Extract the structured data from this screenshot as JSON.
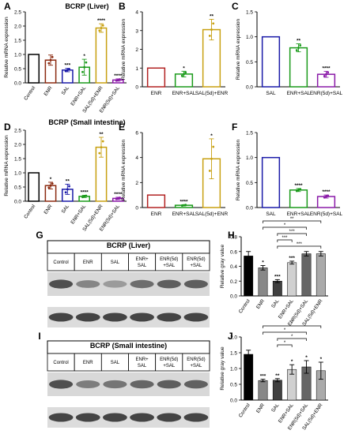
{
  "chart_data": [
    {
      "id": "A",
      "type": "bar",
      "panel_letter": "A",
      "title": "BCRP (Liver)",
      "ylabel": "Relative mRNA expression",
      "xlabel": "",
      "ylim": [
        0,
        2.5
      ],
      "yticks": [
        "0.0",
        "0.5",
        "1.0",
        "1.5",
        "2.0",
        "2.5"
      ],
      "grid": false,
      "legend": "none",
      "categories": [
        "Control",
        "ENR",
        "SAL",
        "ENR+SAL",
        "SAL(5d)+ENR",
        "ENR(5d)+SAL"
      ],
      "values": [
        1.0,
        0.8,
        0.45,
        0.55,
        1.93,
        0.1
      ],
      "errors": [
        0,
        0.18,
        0.06,
        0.28,
        0.15,
        0.04
      ],
      "significance": [
        "",
        "",
        "***",
        "*",
        "****",
        "****"
      ],
      "colors": [
        "#000000",
        "#8b2a10",
        "#1a1aa8",
        "#1a9a1a",
        "#c8a010",
        "#8a1aa8"
      ]
    },
    {
      "id": "B",
      "type": "bar",
      "panel_letter": "B",
      "title": "",
      "ylabel": "Relative mRNA expression",
      "xlabel": "",
      "ylim": [
        0,
        4
      ],
      "yticks": [
        "0",
        "1",
        "2",
        "3",
        "4"
      ],
      "grid": false,
      "legend": "none",
      "categories": [
        "ENR",
        "ENR+SAL",
        "SAL(5d)+ENR"
      ],
      "values": [
        1.0,
        0.68,
        3.05
      ],
      "errors": [
        0,
        0.15,
        0.55
      ],
      "significance": [
        "",
        "*",
        "**"
      ],
      "colors": [
        "#b22222",
        "#1a9a1a",
        "#c8a010"
      ]
    },
    {
      "id": "C",
      "type": "bar",
      "panel_letter": "C",
      "title": "",
      "ylabel": "Relative mRNA expression",
      "xlabel": "",
      "ylim": [
        0,
        1.5
      ],
      "yticks": [
        "0.0",
        "0.5",
        "1.0",
        "1.5"
      ],
      "grid": false,
      "legend": "none",
      "categories": [
        "SAL",
        "ENR+SAL",
        "ENR(5d)+SAL"
      ],
      "values": [
        1.0,
        0.78,
        0.25
      ],
      "errors": [
        0,
        0.08,
        0.06
      ],
      "significance": [
        "",
        "**",
        "****"
      ],
      "colors": [
        "#1a1aa8",
        "#1a9a1a",
        "#8a1aa8"
      ]
    },
    {
      "id": "D",
      "type": "bar",
      "panel_letter": "D",
      "title": "BCRP (Small intestine)",
      "ylabel": "Relative mRNA expression",
      "xlabel": "",
      "ylim": [
        0,
        2.5
      ],
      "yticks": [
        "0.0",
        "0.5",
        "1.0",
        "1.5",
        "2.0",
        "2.5"
      ],
      "grid": false,
      "legend": "none",
      "categories": [
        "Control",
        "ENR",
        "SAL",
        "ENR+SAL",
        "SAL(5d)+ENR",
        "ENR(5d)+SAL"
      ],
      "values": [
        1.0,
        0.55,
        0.42,
        0.17,
        1.9,
        0.1
      ],
      "errors": [
        0,
        0.12,
        0.18,
        0.04,
        0.35,
        0.04
      ],
      "significance": [
        "",
        "*",
        "**",
        "****",
        "**",
        "****"
      ],
      "colors": [
        "#000000",
        "#8b2a10",
        "#1a1aa8",
        "#1a9a1a",
        "#c8a010",
        "#8a1aa8"
      ]
    },
    {
      "id": "E",
      "type": "bar",
      "panel_letter": "E",
      "title": "",
      "ylabel": "Relative mRNA expression",
      "xlabel": "",
      "ylim": [
        0,
        6
      ],
      "yticks": [
        "0",
        "2",
        "4",
        "6"
      ],
      "grid": false,
      "legend": "none",
      "categories": [
        "ENR",
        "ENR+SAL",
        "SAL(5d)+ENR"
      ],
      "values": [
        1.0,
        0.18,
        3.9
      ],
      "errors": [
        0,
        0.05,
        1.6
      ],
      "significance": [
        "",
        "****",
        "*"
      ],
      "colors": [
        "#b22222",
        "#1a9a1a",
        "#c8a010"
      ]
    },
    {
      "id": "F",
      "type": "bar",
      "panel_letter": "F",
      "title": "",
      "ylabel": "Relative mRNA expression",
      "xlabel": "",
      "ylim": [
        0,
        1.5
      ],
      "yticks": [
        "0.0",
        "0.5",
        "1.0",
        "1.5"
      ],
      "grid": false,
      "legend": "none",
      "categories": [
        "SAL",
        "ENR+SAL",
        "ENR(5d)+SAL"
      ],
      "values": [
        1.0,
        0.35,
        0.22
      ],
      "errors": [
        0,
        0.03,
        0.03
      ],
      "significance": [
        "",
        "****",
        "****"
      ],
      "colors": [
        "#1a1aa8",
        "#1a9a1a",
        "#8a1aa8"
      ]
    },
    {
      "id": "H",
      "type": "bar",
      "panel_letter": "H",
      "title": "",
      "ylabel": "Relative gray value",
      "xlabel": "",
      "ylim": [
        0,
        0.8
      ],
      "yticks": [
        "0.0",
        "0.2",
        "0.4",
        "0.6",
        "0.8"
      ],
      "grid": false,
      "legend": "none",
      "categories": [
        "Control",
        "ENR",
        "SAL",
        "ENR+SAL",
        "ENR(5d)+SAL",
        "SAL(5d)+ENR"
      ],
      "values": [
        0.54,
        0.38,
        0.2,
        0.45,
        0.57,
        0.57
      ],
      "errors": [
        0.06,
        0.03,
        0.02,
        0.02,
        0.03,
        0.03
      ],
      "significance": [
        "",
        "*",
        "***",
        "***",
        "",
        ""
      ],
      "brackets": [
        {
          "from": 1,
          "to": 5,
          "label": "**"
        },
        {
          "from": 1,
          "to": 4,
          "label": "*"
        },
        {
          "from": 2,
          "to": 4,
          "label": "***"
        },
        {
          "from": 2,
          "to": 3,
          "label": "***"
        },
        {
          "from": 2,
          "to": 5,
          "label": "***"
        }
      ],
      "colors": [
        "#000000",
        "#888888",
        "#404040",
        "#d0d0d0",
        "#666666",
        "#aaaaaa"
      ]
    },
    {
      "id": "J",
      "type": "bar",
      "panel_letter": "J",
      "title": "",
      "ylabel": "Relative gray value",
      "xlabel": "",
      "ylim": [
        0,
        2.0
      ],
      "yticks": [
        "0.0",
        "0.5",
        "1.0",
        "1.5",
        "2.0"
      ],
      "grid": false,
      "legend": "none",
      "categories": [
        "Control",
        "ENR",
        "SAL",
        "ENR+SAL",
        "ENR(5d)+SAL",
        "SAL(5d)+ENR"
      ],
      "values": [
        1.45,
        0.62,
        0.63,
        0.97,
        1.05,
        0.93
      ],
      "errors": [
        0.13,
        0.04,
        0.05,
        0.15,
        0.2,
        0.27
      ],
      "significance": [
        "",
        "***",
        "**",
        "*",
        "*",
        "*"
      ],
      "brackets": [
        {
          "from": 1,
          "to": 5,
          "label": "*"
        },
        {
          "from": 1,
          "to": 4,
          "label": "*"
        },
        {
          "from": 2,
          "to": 4,
          "label": "*"
        },
        {
          "from": 2,
          "to": 3,
          "label": "*"
        }
      ],
      "colors": [
        "#000000",
        "#888888",
        "#404040",
        "#d0d0d0",
        "#666666",
        "#aaaaaa"
      ]
    }
  ],
  "blots": [
    {
      "id": "G",
      "panel_letter": "G",
      "title": "BCRP (Liver)",
      "lanes": [
        {
          "line1": "Control",
          "line2": ""
        },
        {
          "line1": "ENR",
          "line2": ""
        },
        {
          "line1": "SAL",
          "line2": ""
        },
        {
          "line1": "ENR+",
          "line2": "SAL"
        },
        {
          "line1": "ENR(5d)",
          "line2": "+SAL"
        },
        {
          "line1": "ENR(5d)",
          "line2": "+SAL"
        }
      ],
      "band_intensity": [
        0.8,
        0.45,
        0.3,
        0.6,
        0.7,
        0.7
      ]
    },
    {
      "id": "I",
      "panel_letter": "I",
      "title": "BCRP (Small intestine)",
      "lanes": [
        {
          "line1": "Control",
          "line2": ""
        },
        {
          "line1": "ENR",
          "line2": ""
        },
        {
          "line1": "SAL",
          "line2": ""
        },
        {
          "line1": "ENR+",
          "line2": "SAL"
        },
        {
          "line1": "ENR(5d)",
          "line2": "+SAL"
        },
        {
          "line1": "ENR(5d)",
          "line2": "+SAL"
        }
      ],
      "band_intensity": [
        0.8,
        0.5,
        0.55,
        0.65,
        0.7,
        0.68
      ]
    }
  ]
}
